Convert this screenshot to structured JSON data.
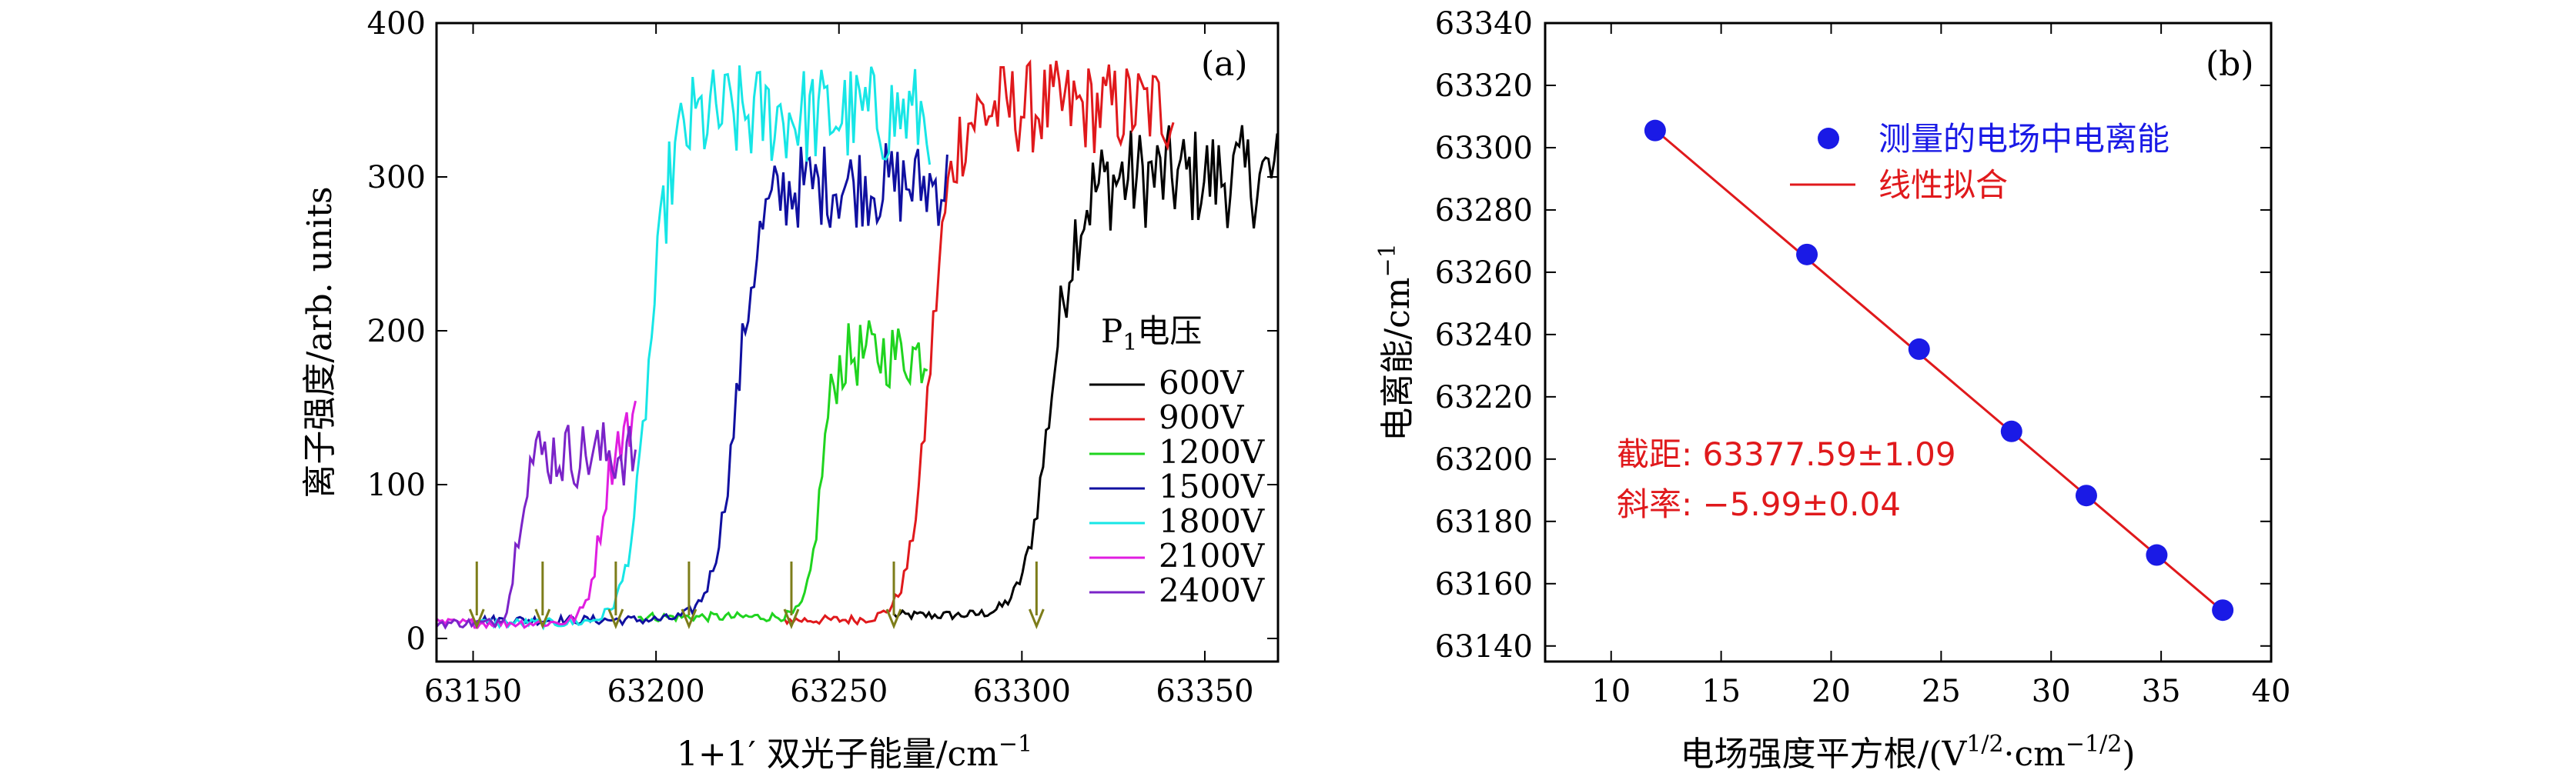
{
  "chart_data": [
    {
      "type": "line",
      "panel_label": "(a)",
      "xlabel": "1+1′ 双光子能量/cm",
      "xlabel_sup": "−1",
      "ylabel": "离子强度/arb. units",
      "xlim": [
        63140,
        63370
      ],
      "ylim": [
        -15,
        400
      ],
      "xticks": [
        63150,
        63200,
        63250,
        63300,
        63350
      ],
      "yticks": [
        0,
        100,
        200,
        300,
        400
      ],
      "legend_title_main": "P",
      "legend_title_sub": "1",
      "legend_title_rest": "电压",
      "legend_position": "right",
      "series": [
        {
          "name": "600V",
          "color": "#000000",
          "onset": 63308,
          "start": 63265,
          "end": 63370,
          "low": 15,
          "high": 300,
          "width": 14,
          "noise": 22
        },
        {
          "name": "900V",
          "color": "#e0191c",
          "onset": 63275,
          "start": 63235,
          "end": 63342,
          "low": 12,
          "high": 345,
          "width": 12,
          "noise": 20
        },
        {
          "name": "1200V",
          "color": "#1fd41f",
          "onset": 63245,
          "start": 63195,
          "end": 63275,
          "low": 14,
          "high": 185,
          "width": 7,
          "noise": 14
        },
        {
          "name": "1500V",
          "color": "#1010a0",
          "onset": 63222,
          "start": 63150,
          "end": 63280,
          "low": 12,
          "high": 295,
          "width": 13,
          "noise": 18
        },
        {
          "name": "1800V",
          "color": "#17e6e6",
          "onset": 63198,
          "start": 63150,
          "end": 63275,
          "low": 10,
          "high": 340,
          "width": 12,
          "noise": 22
        },
        {
          "name": "2100V",
          "color": "#e01ee0",
          "onset": 63185,
          "start": 63140,
          "end": 63195,
          "low": 10,
          "high": 140,
          "width": 8,
          "noise": 12
        },
        {
          "name": "2400V",
          "color": "#7b24c8",
          "onset": 63162,
          "start": 63140,
          "end": 63195,
          "low": 10,
          "high": 120,
          "width": 5,
          "noise": 14
        }
      ],
      "arrows": [
        63151,
        63169,
        63189,
        63209,
        63237,
        63265,
        63304
      ],
      "arrow_color": "#7d7d1a"
    },
    {
      "type": "scatter",
      "panel_label": "(b)",
      "xlabel_main": "电场强度平方根/(V",
      "xlabel_sup1": "1/2",
      "xlabel_mid": "·cm",
      "xlabel_sup2": "−1/2",
      "xlabel_end": ")",
      "ylabel": "电离能/cm",
      "ylabel_sup": "−1",
      "xlim": [
        7,
        40
      ],
      "ylim": [
        63135,
        63340
      ],
      "xticks": [
        10,
        15,
        20,
        25,
        30,
        35,
        40
      ],
      "yticks": [
        63140,
        63160,
        63180,
        63200,
        63220,
        63240,
        63260,
        63280,
        63300,
        63320,
        63340
      ],
      "points": {
        "name": "测量的电场中电离能",
        "color": "#1a1ae6",
        "x": [
          12.0,
          18.9,
          24.0,
          28.2,
          31.6,
          34.8,
          37.8
        ],
        "y": [
          63305.5,
          63265.7,
          63235.3,
          63208.9,
          63188.3,
          63169.2,
          63151.5
        ]
      },
      "fit": {
        "name": "线性拟合",
        "color": "#e0191c",
        "intercept": 63377.59,
        "slope": -5.99,
        "x_range": [
          12.0,
          37.8
        ]
      },
      "annotations": [
        "截距: 63377.59±1.09",
        "斜率: −5.99±0.04"
      ],
      "legend_position": "top-right"
    }
  ]
}
